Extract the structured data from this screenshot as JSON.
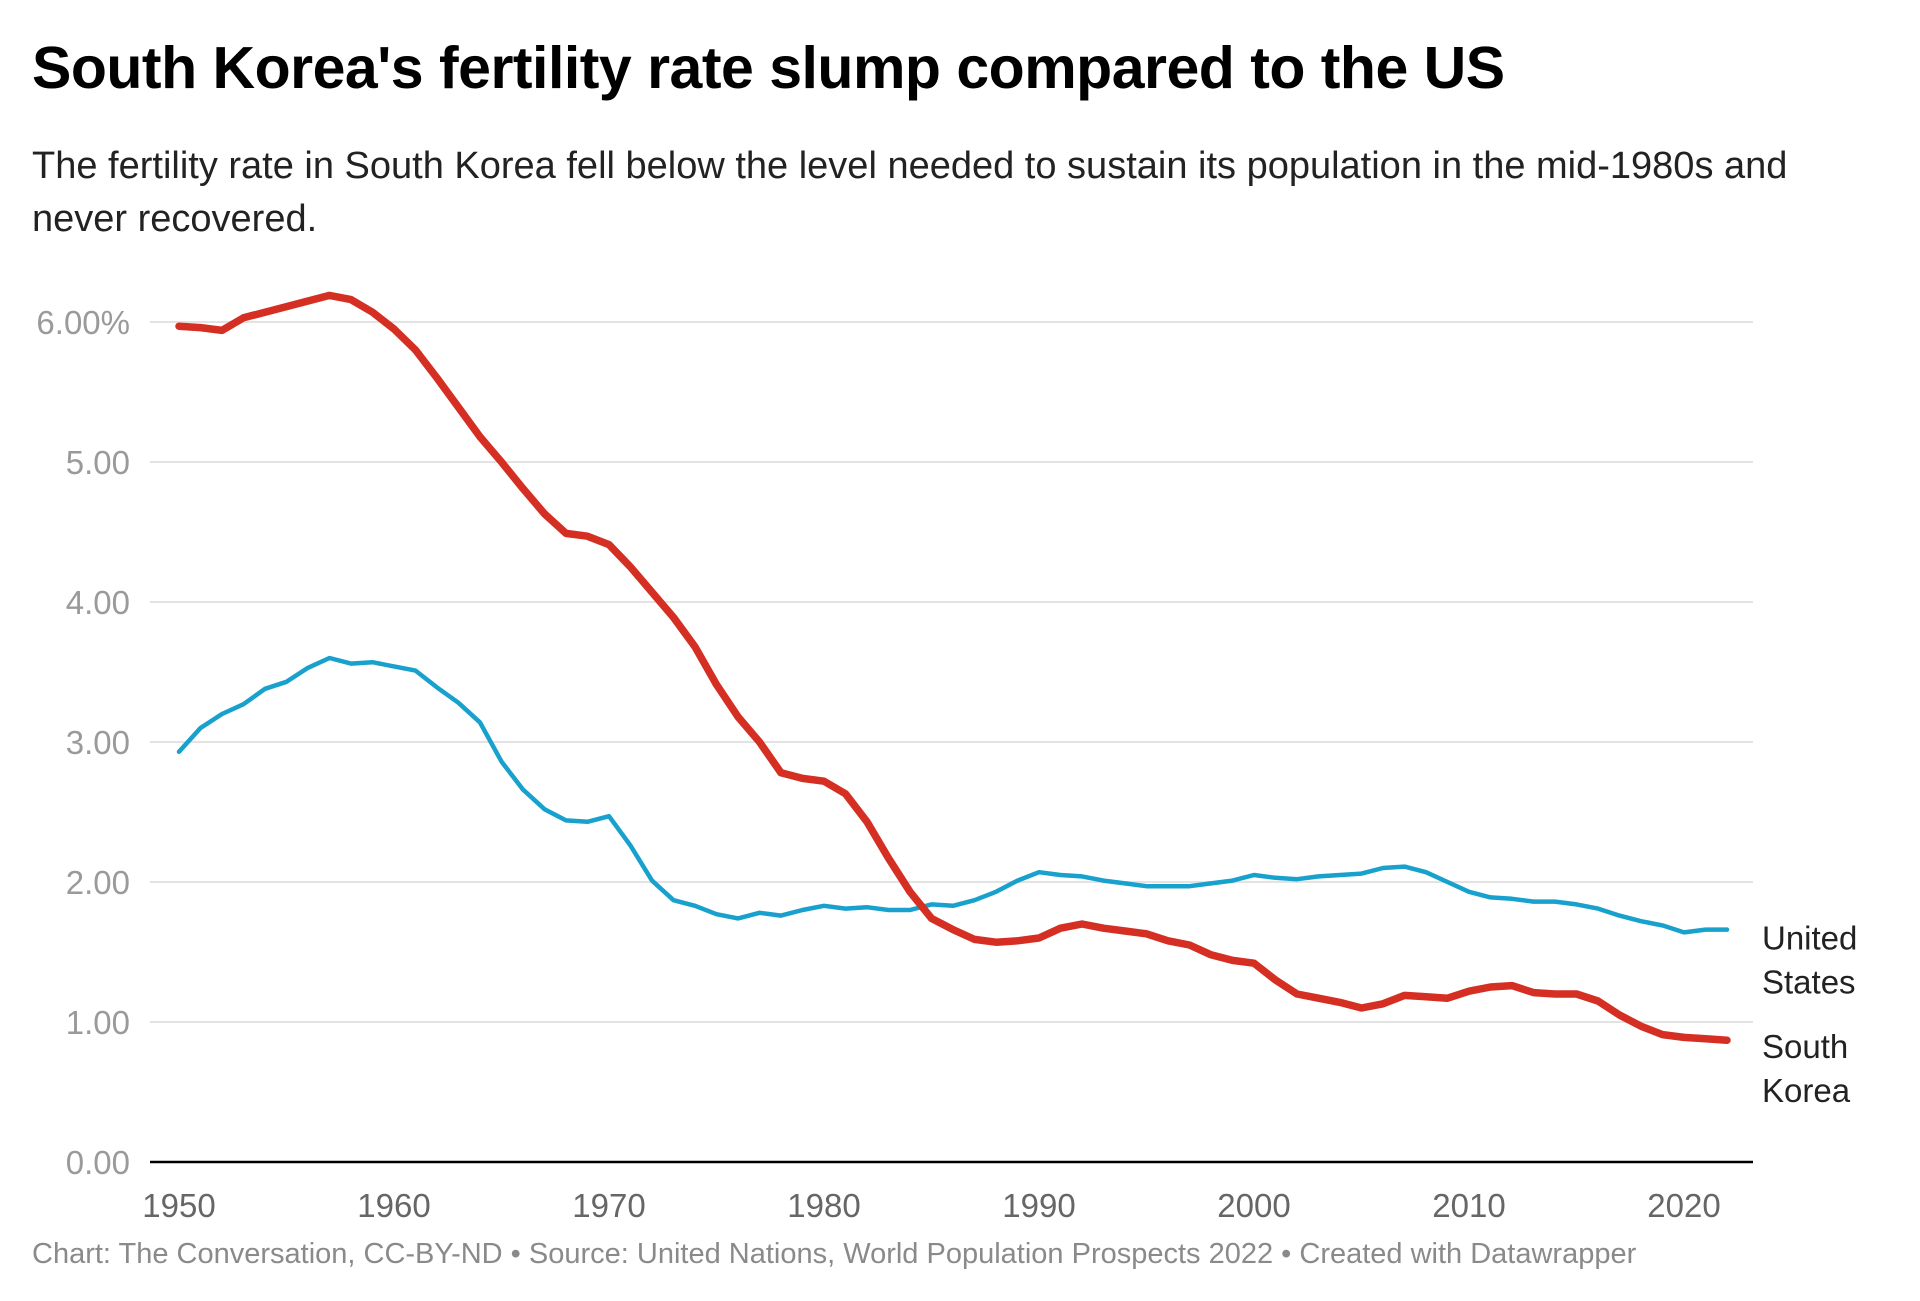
{
  "title": "South Korea's fertility rate slump compared to the US",
  "subtitle": "The fertility rate in South Korea fell below the level needed to sustain its population in the mid-1980s and never recovered.",
  "footer": "Chart: The Conversation, CC-BY-ND • Source: United Nations, World Population Prospects 2022 • Created with Datawrapper",
  "chart_data": {
    "type": "line",
    "title": "South Korea's fertility rate slump compared to the US",
    "xlabel": "",
    "ylabel": "",
    "xlim": [
      1950,
      2023
    ],
    "ylim": [
      0,
      6.2
    ],
    "grid": true,
    "legend": "direct labels at right",
    "y_ticks": [
      {
        "value": 0,
        "label": "0.00"
      },
      {
        "value": 1,
        "label": "1.00"
      },
      {
        "value": 2,
        "label": "2.00"
      },
      {
        "value": 3,
        "label": "3.00"
      },
      {
        "value": 4,
        "label": "4.00"
      },
      {
        "value": 5,
        "label": "5.00"
      },
      {
        "value": 6,
        "label": "6.00%"
      }
    ],
    "x_ticks": [
      {
        "value": 1950,
        "label": "1950"
      },
      {
        "value": 1960,
        "label": "1960"
      },
      {
        "value": 1970,
        "label": "1970"
      },
      {
        "value": 1980,
        "label": "1980"
      },
      {
        "value": 1990,
        "label": "1990"
      },
      {
        "value": 2000,
        "label": "2000"
      },
      {
        "value": 2010,
        "label": "2010"
      },
      {
        "value": 2020,
        "label": "2020"
      }
    ],
    "x_start": 1950,
    "series": [
      {
        "name": "United States",
        "label_lines": [
          "United",
          "States"
        ],
        "color": "#18a1cd",
        "values": [
          2.93,
          3.1,
          3.2,
          3.27,
          3.38,
          3.43,
          3.53,
          3.6,
          3.56,
          3.57,
          3.54,
          3.51,
          3.39,
          3.28,
          3.14,
          2.86,
          2.66,
          2.52,
          2.44,
          2.43,
          2.47,
          2.26,
          2.01,
          1.87,
          1.83,
          1.77,
          1.74,
          1.78,
          1.76,
          1.8,
          1.83,
          1.81,
          1.82,
          1.8,
          1.8,
          1.84,
          1.83,
          1.87,
          1.93,
          2.01,
          2.07,
          2.05,
          2.04,
          2.01,
          1.99,
          1.97,
          1.97,
          1.97,
          1.99,
          2.01,
          2.05,
          2.03,
          2.02,
          2.04,
          2.05,
          2.06,
          2.1,
          2.11,
          2.07,
          2.0,
          1.93,
          1.89,
          1.88,
          1.86,
          1.86,
          1.84,
          1.81,
          1.76,
          1.72,
          1.69,
          1.64,
          1.66,
          1.66
        ]
      },
      {
        "name": "South Korea",
        "label_lines": [
          "South",
          "Korea"
        ],
        "color": "#d52f23",
        "values": [
          5.97,
          5.96,
          5.94,
          6.03,
          6.07,
          6.11,
          6.15,
          6.19,
          6.16,
          6.07,
          5.95,
          5.8,
          5.6,
          5.39,
          5.18,
          5.0,
          4.81,
          4.63,
          4.49,
          4.47,
          4.41,
          4.25,
          4.07,
          3.89,
          3.68,
          3.41,
          3.18,
          3.0,
          2.78,
          2.74,
          2.72,
          2.63,
          2.43,
          2.17,
          1.93,
          1.74,
          1.66,
          1.59,
          1.57,
          1.58,
          1.6,
          1.67,
          1.7,
          1.67,
          1.65,
          1.63,
          1.58,
          1.55,
          1.48,
          1.44,
          1.42,
          1.3,
          1.2,
          1.17,
          1.14,
          1.1,
          1.13,
          1.19,
          1.18,
          1.17,
          1.22,
          1.25,
          1.26,
          1.21,
          1.2,
          1.2,
          1.15,
          1.05,
          0.97,
          0.91,
          0.89,
          0.88,
          0.87
        ]
      }
    ]
  }
}
